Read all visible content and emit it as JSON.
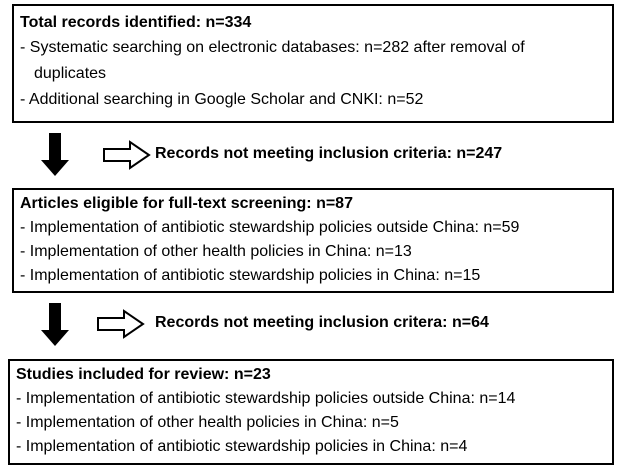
{
  "boxes": [
    {
      "title": "Total records identified: n=334",
      "items": [
        "- Systematic searching on electronic databases: n=282 after removal of duplicates",
        "- Additional searching in Google Scholar and CNKI: n=52"
      ]
    },
    {
      "title": "Articles eligible for full-text screening: n=87",
      "items": [
        "- Implementation of antibiotic stewardship policies outside China: n=59",
        "- Implementation of other health policies in China: n=13",
        "- Implementation of antibiotic stewardship policies in China: n=15"
      ]
    },
    {
      "title": "Studies included for review: n=23",
      "items": [
        "- Implementation of antibiotic stewardship policies outside China: n=14",
        "- Implementation of other health policies in China: n=5",
        "- Implementation of antibiotic stewardship policies in China: n=4"
      ]
    }
  ],
  "exclusions": [
    "Records not meeting inclusion criteria: n=247",
    "Records not meeting inclusion critera: n=64"
  ]
}
